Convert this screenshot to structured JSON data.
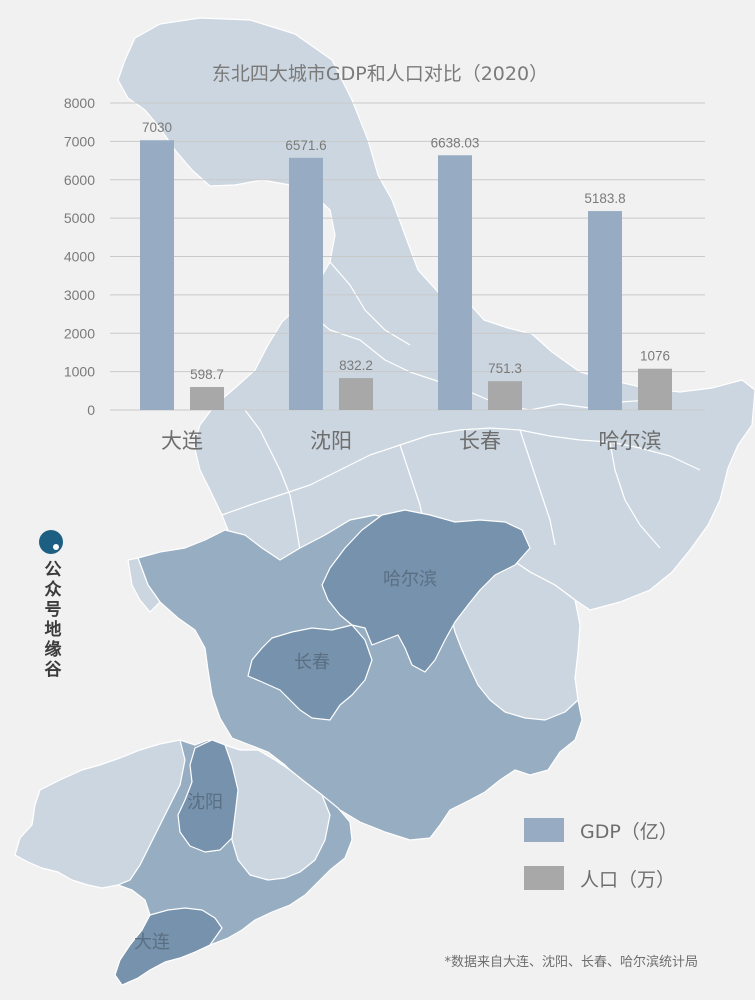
{
  "chart_data": {
    "type": "bar",
    "title": "东北四大城市GDP和人口对比（2020）",
    "categories": [
      "大连",
      "沈阳",
      "长春",
      "哈尔滨"
    ],
    "series": [
      {
        "name": "GDP（亿）",
        "values": [
          7030,
          6571.6,
          6638.03,
          5183.8
        ],
        "labels": [
          "7030",
          "6571.6",
          "6638.03",
          "5183.8"
        ],
        "color": "#97abc2"
      },
      {
        "name": "人口（万）",
        "values": [
          598.7,
          832.2,
          751.3,
          1076
        ],
        "labels": [
          "598.7",
          "832.2",
          "751.3",
          "1076"
        ],
        "color": "#a8a8a8"
      }
    ],
    "ylim": [
      0,
      8000
    ],
    "yticks": [
      "0",
      "1000",
      "2000",
      "3000",
      "4000",
      "5000",
      "6000",
      "7000",
      "8000"
    ],
    "grid": true,
    "legend_position": "bottom-right"
  },
  "map_labels": {
    "harbin": "哈尔滨",
    "changchun": "长春",
    "shenyang": "沈阳",
    "dalian": "大连"
  },
  "footnote": "*数据来自大连、沈阳、长春、哈尔滨统计局",
  "brand": {
    "text": "公众号地缘谷",
    "icon": "brand-dot-icon"
  },
  "colors": {
    "background": "#f1f1f1",
    "map_light": "#ccd6e0",
    "map_mid": "#97adc2",
    "map_dark": "#7692ad",
    "brand": "#1d5f83"
  }
}
